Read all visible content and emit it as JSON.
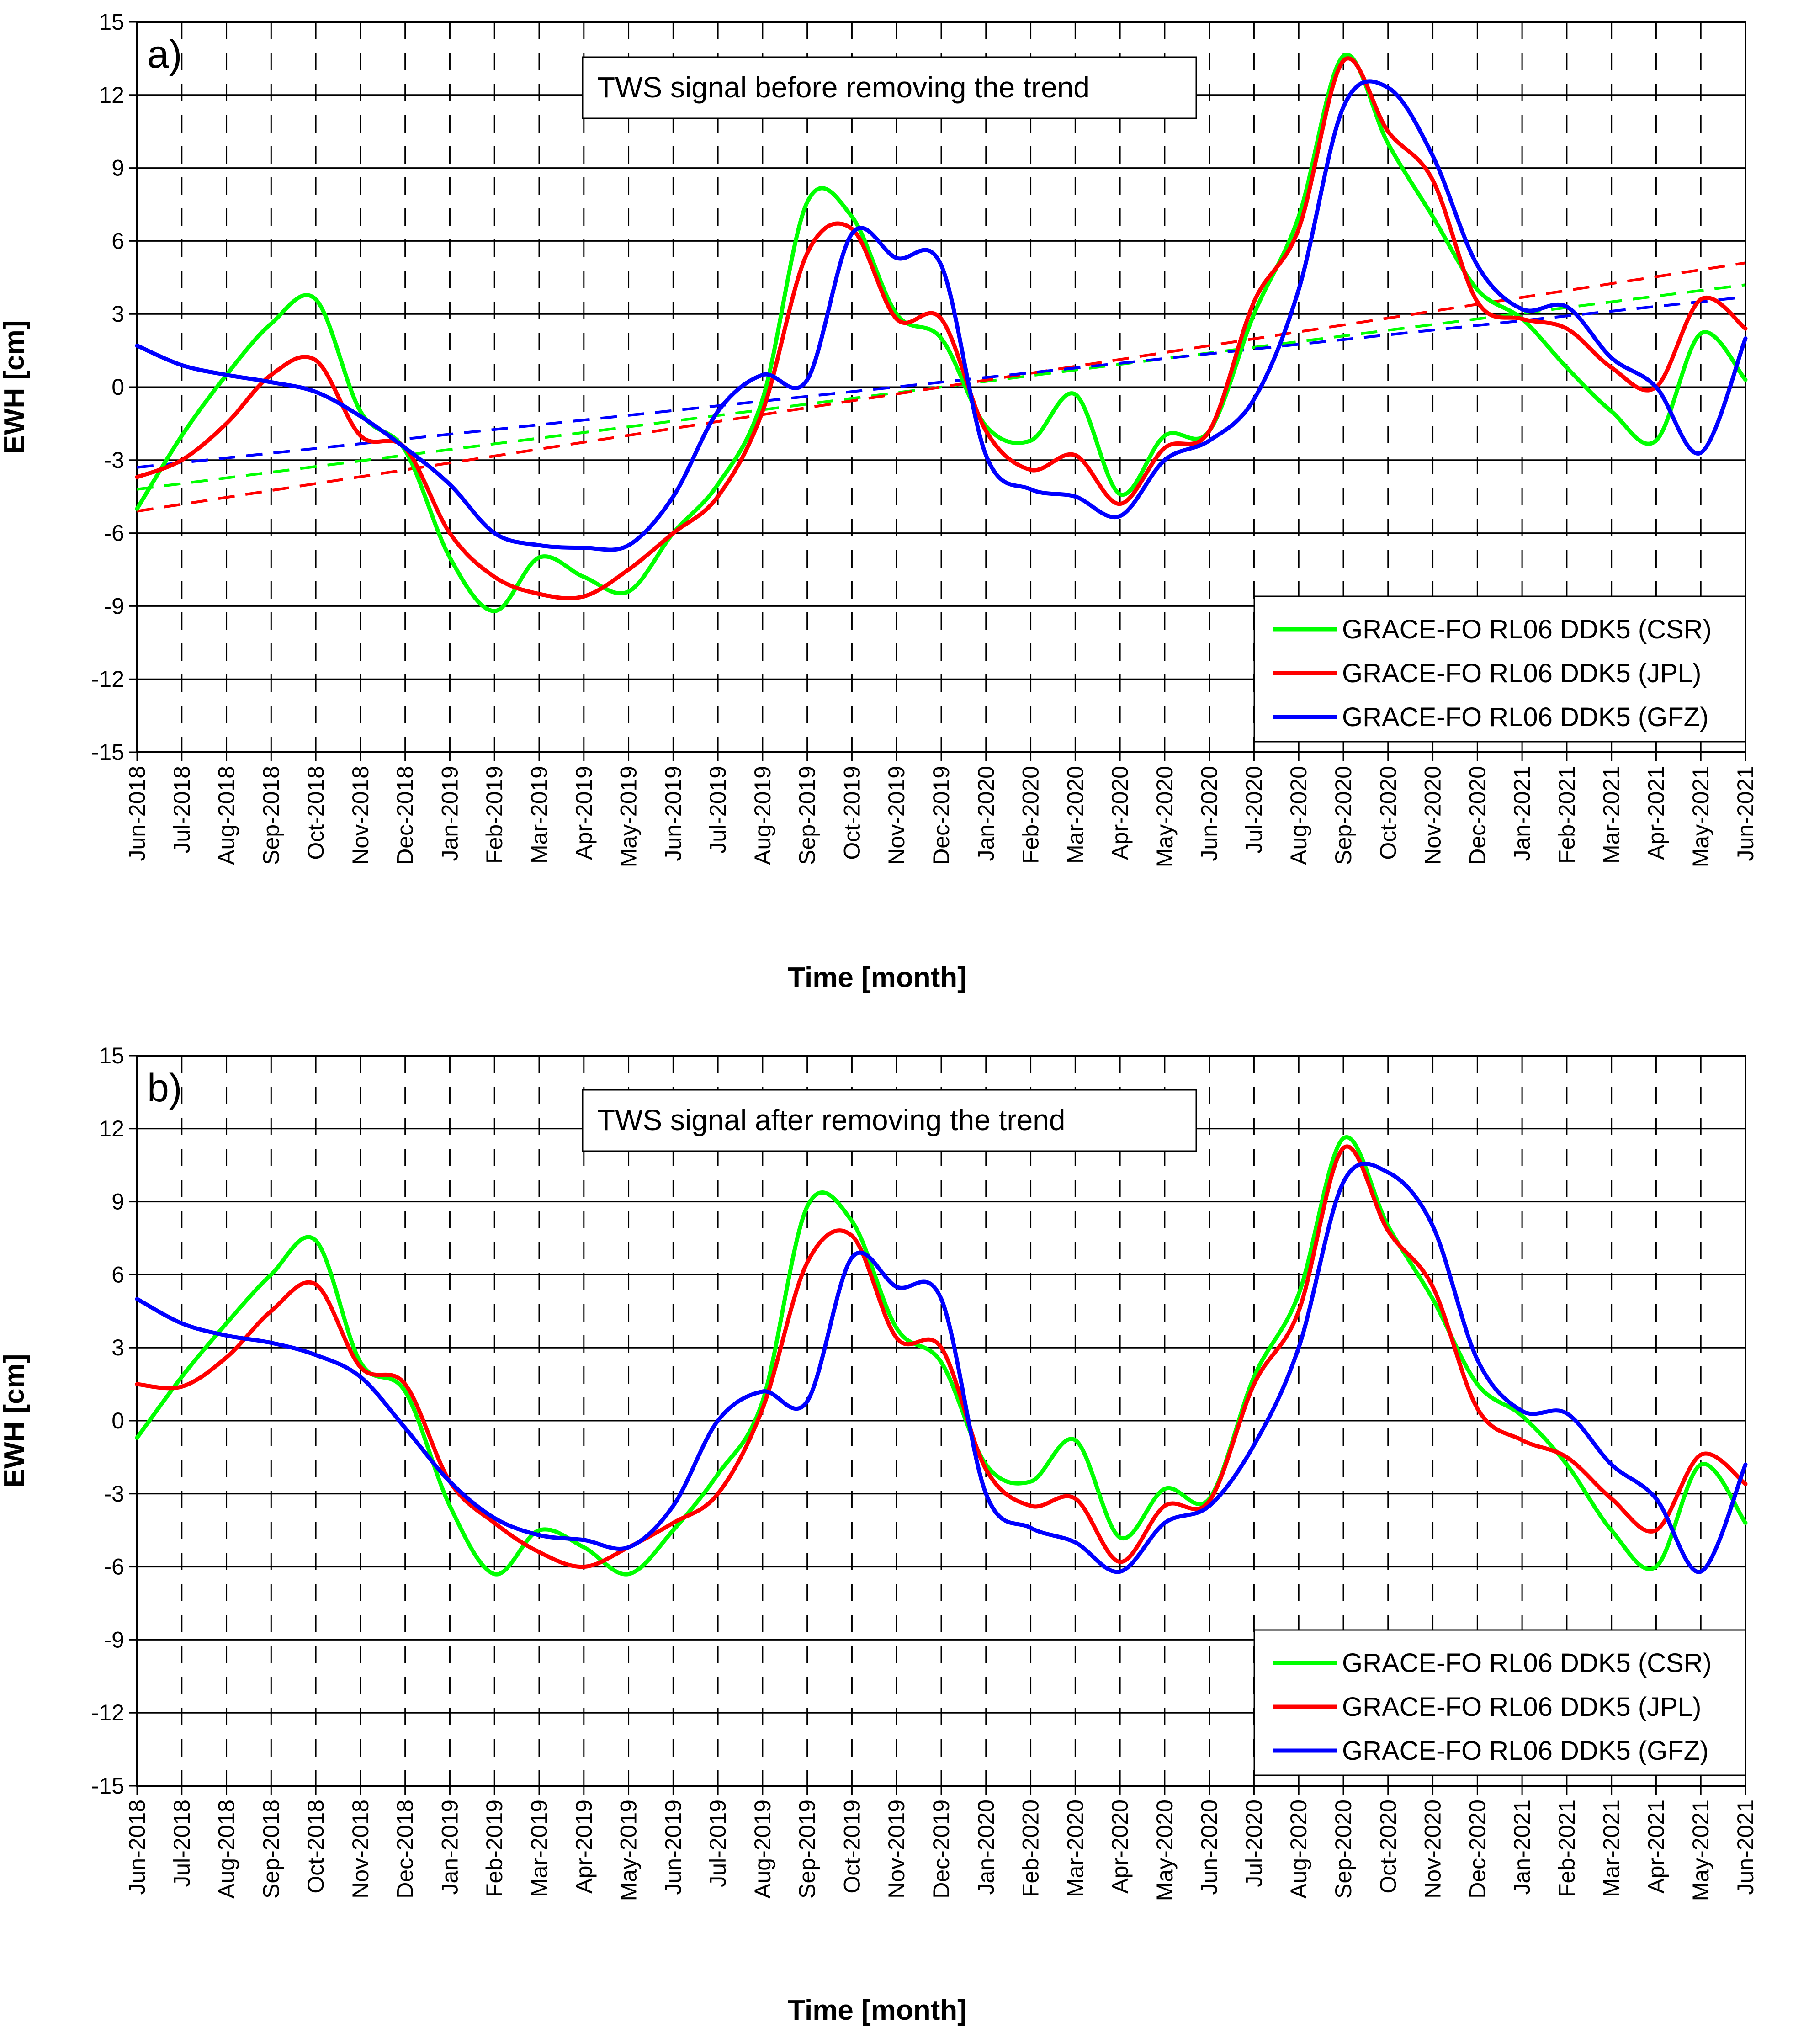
{
  "chart_data": [
    {
      "type": "line",
      "panel_label": "a)",
      "annotation": "TWS signal before removing the trend",
      "xlabel": "Time [month]",
      "ylabel": "EWH [cm]",
      "ylim": [
        -15,
        15
      ],
      "y_ticks": [
        "15",
        "12",
        "9",
        "6",
        "3",
        "0",
        "-3",
        "-6",
        "-9",
        "-12",
        "-15"
      ],
      "y_tick_values": [
        15,
        12,
        9,
        6,
        3,
        0,
        -3,
        -6,
        -9,
        -12,
        -15
      ],
      "x_ticks": [
        "Jun-2018",
        "Jul-2018",
        "Aug-2018",
        "Sep-2018",
        "Oct-2018",
        "Nov-2018",
        "Dec-2018",
        "Jan-2019",
        "Feb-2019",
        "Mar-2019",
        "Apr-2019",
        "May-2019",
        "Jun-2019",
        "Jul-2019",
        "Aug-2019",
        "Sep-2019",
        "Oct-2019",
        "Nov-2019",
        "Dec-2019",
        "Jan-2020",
        "Feb-2020",
        "Mar-2020",
        "Apr-2020",
        "May-2020",
        "Jun-2020",
        "Jul-2020",
        "Aug-2020",
        "Sep-2020",
        "Oct-2020",
        "Nov-2020",
        "Dec-2020",
        "Jan-2021",
        "Feb-2021",
        "Mar-2021",
        "Apr-2021",
        "May-2021",
        "Jun-2021"
      ],
      "grid": "horizontal solid, vertical dashed",
      "legend_position": "bottom-right",
      "series": [
        {
          "name": "GRACE-FO RL06 DDK5 (CSR)",
          "color": "#00ff00",
          "x": [
            "Jun-2018",
            "Jul-2018",
            "Aug-2018",
            "Sep-2018",
            "Oct-2018",
            "Nov-2018",
            "Dec-2018",
            "Jan-2019",
            "Feb-2019",
            "Mar-2019",
            "Apr-2019",
            "May-2019",
            "Jun-2019",
            "Jul-2019",
            "Aug-2019",
            "Sep-2019",
            "Oct-2019",
            "Nov-2019",
            "Dec-2019",
            "Jan-2020",
            "Feb-2020",
            "Mar-2020",
            "Apr-2020",
            "May-2020",
            "Jun-2020",
            "Jul-2020",
            "Aug-2020",
            "Sep-2020",
            "Oct-2020",
            "Nov-2020",
            "Dec-2020",
            "Jan-2021",
            "Feb-2021",
            "Mar-2021",
            "Apr-2021",
            "May-2021",
            "Jun-2021"
          ],
          "values": [
            -5.0,
            -2.0,
            0.5,
            2.6,
            3.6,
            -1.0,
            -2.6,
            -7.0,
            -9.2,
            -7.0,
            -7.8,
            -8.4,
            -6.0,
            -4.0,
            -0.5,
            7.6,
            7.0,
            3.0,
            2.0,
            -1.6,
            -2.2,
            -0.3,
            -4.4,
            -2.0,
            -1.8,
            3.0,
            7.0,
            13.6,
            10.0,
            7.0,
            4.0,
            2.8,
            0.8,
            -1.0,
            -2.2,
            2.2,
            0.3
          ]
        },
        {
          "name": "GRACE-FO RL06 DDK5 (JPL)",
          "color": "#ff0000",
          "x": [
            "Jun-2018",
            "Jul-2018",
            "Aug-2018",
            "Sep-2018",
            "Oct-2018",
            "Nov-2018",
            "Dec-2018",
            "Jan-2019",
            "Feb-2019",
            "Mar-2019",
            "Apr-2019",
            "May-2019",
            "Jun-2019",
            "Jul-2019",
            "Aug-2019",
            "Sep-2019",
            "Oct-2019",
            "Nov-2019",
            "Dec-2019",
            "Jan-2020",
            "Feb-2020",
            "Mar-2020",
            "Apr-2020",
            "May-2020",
            "Jun-2020",
            "Jul-2020",
            "Aug-2020",
            "Sep-2020",
            "Oct-2020",
            "Nov-2020",
            "Dec-2020",
            "Jan-2021",
            "Feb-2021",
            "Mar-2021",
            "Apr-2021",
            "May-2021",
            "Jun-2021"
          ],
          "values": [
            -3.7,
            -3.0,
            -1.5,
            0.5,
            1.1,
            -2.0,
            -2.5,
            -6.0,
            -7.8,
            -8.5,
            -8.6,
            -7.5,
            -6.0,
            -4.5,
            -1.0,
            5.5,
            6.5,
            2.8,
            2.8,
            -1.8,
            -3.4,
            -2.8,
            -4.8,
            -2.5,
            -1.8,
            3.5,
            6.5,
            13.4,
            10.5,
            8.5,
            3.5,
            2.8,
            2.4,
            0.8,
            0.0,
            3.6,
            2.4
          ]
        },
        {
          "name": "GRACE-FO RL06 DDK5 (GFZ)",
          "color": "#0000ff",
          "x": [
            "Jun-2018",
            "Jul-2018",
            "Aug-2018",
            "Sep-2018",
            "Oct-2018",
            "Nov-2018",
            "Dec-2018",
            "Jan-2019",
            "Feb-2019",
            "Mar-2019",
            "Apr-2019",
            "May-2019",
            "Jun-2019",
            "Jul-2019",
            "Aug-2019",
            "Sep-2019",
            "Oct-2019",
            "Nov-2019",
            "Dec-2019",
            "Jan-2020",
            "Feb-2020",
            "Mar-2020",
            "Apr-2020",
            "May-2020",
            "Jun-2020",
            "Jul-2020",
            "Aug-2020",
            "Sep-2020",
            "Oct-2020",
            "Nov-2020",
            "Dec-2020",
            "Jan-2021",
            "Feb-2021",
            "Mar-2021",
            "Apr-2021",
            "May-2021",
            "Jun-2021"
          ],
          "values": [
            1.7,
            0.9,
            0.5,
            0.2,
            -0.2,
            -1.2,
            -2.5,
            -4.0,
            -6.0,
            -6.5,
            -6.6,
            -6.5,
            -4.5,
            -1.0,
            0.5,
            0.3,
            6.3,
            5.3,
            5.0,
            -2.8,
            -4.2,
            -4.5,
            -5.3,
            -3.0,
            -2.2,
            -0.5,
            4.0,
            11.5,
            12.3,
            9.5,
            5.0,
            3.2,
            3.3,
            1.2,
            0.0,
            -2.7,
            2.0
          ]
        }
      ],
      "trend_lines": [
        {
          "series": "GRACE-FO RL06 DDK5 (CSR)",
          "style": "dashed",
          "color": "#00ff00",
          "x": [
            "Jun-2018",
            "Jun-2021"
          ],
          "values": [
            -4.2,
            4.2
          ]
        },
        {
          "series": "GRACE-FO RL06 DDK5 (JPL)",
          "style": "dashed",
          "color": "#ff0000",
          "x": [
            "Jun-2018",
            "Jun-2021"
          ],
          "values": [
            -5.1,
            5.1
          ]
        },
        {
          "series": "GRACE-FO RL06 DDK5 (GFZ)",
          "style": "dashed",
          "color": "#0000ff",
          "x": [
            "Jun-2018",
            "Jun-2021"
          ],
          "values": [
            -3.3,
            3.7
          ]
        }
      ]
    },
    {
      "type": "line",
      "panel_label": "b)",
      "annotation": "TWS signal after removing the trend",
      "xlabel": "Time [month]",
      "ylabel": "EWH [cm]",
      "ylim": [
        -15,
        15
      ],
      "y_ticks": [
        "15",
        "12",
        "9",
        "6",
        "3",
        "0",
        "-3",
        "-6",
        "-9",
        "-12",
        "-15"
      ],
      "y_tick_values": [
        15,
        12,
        9,
        6,
        3,
        0,
        -3,
        -6,
        -9,
        -12,
        -15
      ],
      "x_ticks": [
        "Jun-2018",
        "Jul-2018",
        "Aug-2018",
        "Sep-2018",
        "Oct-2018",
        "Nov-2018",
        "Dec-2018",
        "Jan-2019",
        "Feb-2019",
        "Mar-2019",
        "Apr-2019",
        "May-2019",
        "Jun-2019",
        "Jul-2019",
        "Aug-2019",
        "Sep-2019",
        "Oct-2019",
        "Nov-2019",
        "Dec-2019",
        "Jan-2020",
        "Feb-2020",
        "Mar-2020",
        "Apr-2020",
        "May-2020",
        "Jun-2020",
        "Jul-2020",
        "Aug-2020",
        "Sep-2020",
        "Oct-2020",
        "Nov-2020",
        "Dec-2020",
        "Jan-2021",
        "Feb-2021",
        "Mar-2021",
        "Apr-2021",
        "May-2021",
        "Jun-2021"
      ],
      "grid": "horizontal solid, vertical dashed",
      "legend_position": "bottom-right",
      "series": [
        {
          "name": "GRACE-FO RL06 DDK5 (CSR)",
          "color": "#00ff00",
          "x": [
            "Jun-2018",
            "Jul-2018",
            "Aug-2018",
            "Sep-2018",
            "Oct-2018",
            "Nov-2018",
            "Dec-2018",
            "Jan-2019",
            "Feb-2019",
            "Mar-2019",
            "Apr-2019",
            "May-2019",
            "Jun-2019",
            "Jul-2019",
            "Aug-2019",
            "Sep-2019",
            "Oct-2019",
            "Nov-2019",
            "Dec-2019",
            "Jan-2020",
            "Feb-2020",
            "Mar-2020",
            "Apr-2020",
            "May-2020",
            "Jun-2020",
            "Jul-2020",
            "Aug-2020",
            "Sep-2020",
            "Oct-2020",
            "Nov-2020",
            "Dec-2020",
            "Jan-2021",
            "Feb-2021",
            "Mar-2021",
            "Apr-2021",
            "May-2021",
            "Jun-2021"
          ],
          "values": [
            -0.7,
            1.8,
            4.0,
            6.0,
            7.4,
            2.4,
            1.2,
            -3.5,
            -6.3,
            -4.5,
            -5.2,
            -6.3,
            -4.5,
            -2.2,
            0.8,
            8.8,
            8.2,
            3.8,
            2.4,
            -1.8,
            -2.5,
            -0.8,
            -4.8,
            -2.8,
            -3.2,
            1.8,
            5.2,
            11.6,
            8.0,
            5.0,
            1.5,
            0.2,
            -1.8,
            -4.5,
            -6.0,
            -1.8,
            -4.2
          ]
        },
        {
          "name": "GRACE-FO RL06 DDK5 (JPL)",
          "color": "#ff0000",
          "x": [
            "Jun-2018",
            "Jul-2018",
            "Aug-2018",
            "Sep-2018",
            "Oct-2018",
            "Nov-2018",
            "Dec-2018",
            "Jan-2019",
            "Feb-2019",
            "Mar-2019",
            "Apr-2019",
            "May-2019",
            "Jun-2019",
            "Jul-2019",
            "Aug-2019",
            "Sep-2019",
            "Oct-2019",
            "Nov-2019",
            "Dec-2019",
            "Jan-2020",
            "Feb-2020",
            "Mar-2020",
            "Apr-2020",
            "May-2020",
            "Jun-2020",
            "Jul-2020",
            "Aug-2020",
            "Sep-2020",
            "Oct-2020",
            "Nov-2020",
            "Dec-2020",
            "Jan-2021",
            "Feb-2021",
            "Mar-2021",
            "Apr-2021",
            "May-2021",
            "Jun-2021"
          ],
          "values": [
            1.5,
            1.4,
            2.6,
            4.5,
            5.6,
            2.2,
            1.5,
            -2.5,
            -4.2,
            -5.4,
            -6.0,
            -5.2,
            -4.2,
            -3.0,
            0.5,
            6.5,
            7.6,
            3.4,
            3.0,
            -2.0,
            -3.5,
            -3.2,
            -5.8,
            -3.5,
            -3.3,
            1.5,
            4.5,
            11.2,
            7.8,
            5.5,
            0.5,
            -0.8,
            -1.5,
            -3.2,
            -4.5,
            -1.4,
            -2.6
          ]
        },
        {
          "name": "GRACE-FO RL06 DDK5 (GFZ)",
          "color": "#0000ff",
          "x": [
            "Jun-2018",
            "Jul-2018",
            "Aug-2018",
            "Sep-2018",
            "Oct-2018",
            "Nov-2018",
            "Dec-2018",
            "Jan-2019",
            "Feb-2019",
            "Mar-2019",
            "Apr-2019",
            "May-2019",
            "Jun-2019",
            "Jul-2019",
            "Aug-2019",
            "Sep-2019",
            "Oct-2019",
            "Nov-2019",
            "Dec-2019",
            "Jan-2020",
            "Feb-2020",
            "Mar-2020",
            "Apr-2020",
            "May-2020",
            "Jun-2020",
            "Jul-2020",
            "Aug-2020",
            "Sep-2020",
            "Oct-2020",
            "Nov-2020",
            "Dec-2020",
            "Jan-2021",
            "Feb-2021",
            "Mar-2021",
            "Apr-2021",
            "May-2021",
            "Jun-2021"
          ],
          "values": [
            5.0,
            4.0,
            3.5,
            3.2,
            2.7,
            1.8,
            -0.3,
            -2.5,
            -4.0,
            -4.7,
            -4.9,
            -5.2,
            -3.5,
            0.0,
            1.2,
            0.8,
            6.7,
            5.5,
            5.0,
            -3.0,
            -4.4,
            -5.0,
            -6.2,
            -4.2,
            -3.5,
            -1.0,
            3.0,
            9.8,
            10.2,
            8.0,
            2.5,
            0.4,
            0.3,
            -1.8,
            -3.2,
            -6.2,
            -1.8
          ]
        }
      ]
    }
  ],
  "legend": {
    "entries": [
      {
        "label": "GRACE-FO RL06 DDK5 (CSR)",
        "color": "#00ff00"
      },
      {
        "label": "GRACE-FO RL06 DDK5 (JPL)",
        "color": "#ff0000"
      },
      {
        "label": "GRACE-FO RL06 DDK5 (GFZ)",
        "color": "#0000ff"
      }
    ]
  }
}
